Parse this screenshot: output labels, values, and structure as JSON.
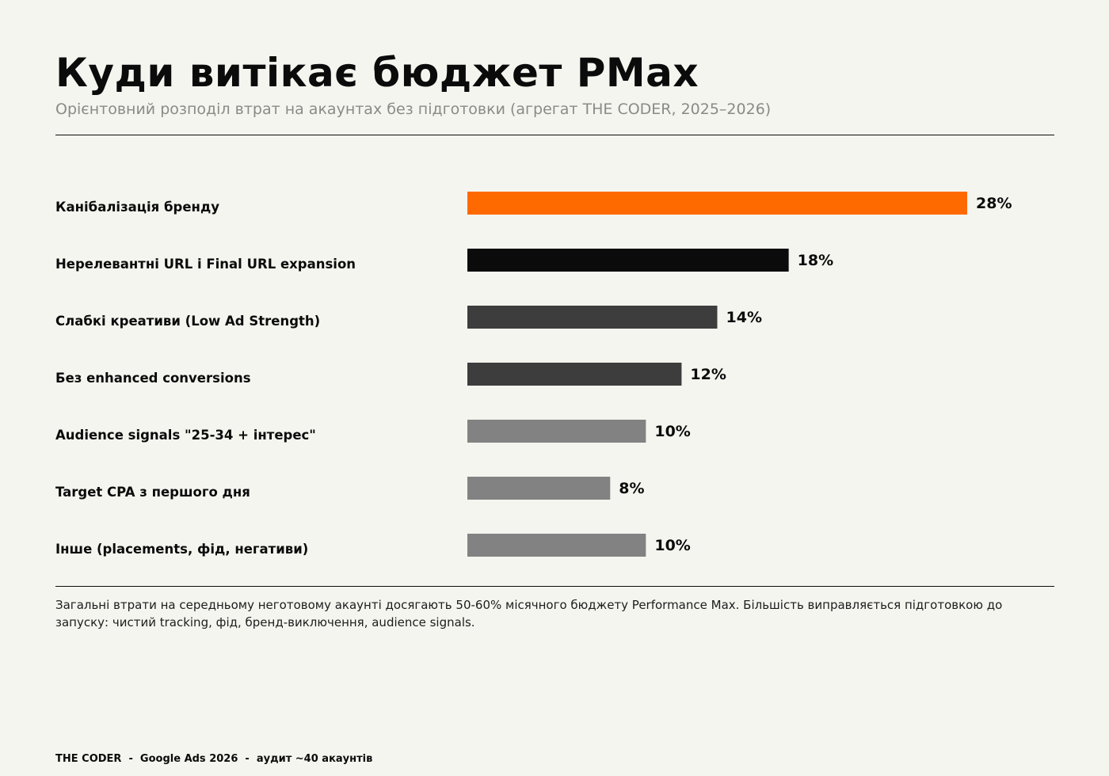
{
  "header": {
    "title": "Куди витікає бюджет PMax",
    "subtitle": "Орієнтовний розподіл втрат на акаунтах без підготовки (агрегат THE CODER, 2025–2026)"
  },
  "chart_data": {
    "type": "bar",
    "orientation": "horizontal",
    "categories": [
      "Канібалізація бренду",
      "Нерелевантні URL і Final URL expansion",
      "Слабкі креативи (Low Ad Strength)",
      "Без enhanced conversions",
      "Audience signals \"25-34 + інтерес\"",
      "Target CPA з першого дня",
      "Інше (placements, фід, негативи)"
    ],
    "values": [
      28,
      18,
      14,
      12,
      10,
      8,
      10
    ],
    "value_labels": [
      "28%",
      "18%",
      "14%",
      "12%",
      "10%",
      "8%",
      "10%"
    ],
    "unit": "%",
    "bar_colors": [
      "#ff6a00",
      "#0b0b0b",
      "#3d3d3d",
      "#3d3d3d",
      "#828282",
      "#828282",
      "#828282"
    ],
    "xlim": [
      0,
      28
    ],
    "grid": false,
    "legend": "none"
  },
  "footnote": "Загальні втрати на середньому неготовому акаунті досягають 50-60% місячного бюджету Performance Max. Більшість виправляється підготовкою до запуску: чистий tracking, фід, бренд-виключення, audience signals.",
  "footer": "THE CODER  -  Google Ads 2026  -  аудит ~40 акаунтів",
  "colors": {
    "background": "#f5f5f0",
    "accent": "#ff6a00",
    "text": "#0b0b0b",
    "muted": "#8a8a86"
  }
}
